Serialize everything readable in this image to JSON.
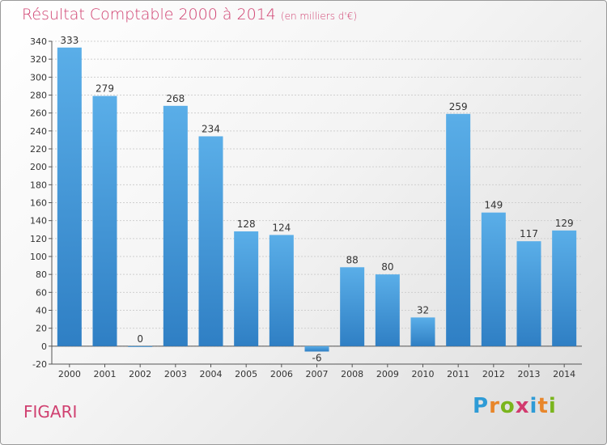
{
  "chart_data": {
    "type": "bar",
    "title": "Résultat Comptable 2000 à 2014",
    "subtitle": "(en milliers d'€)",
    "categories": [
      "2000",
      "2001",
      "2002",
      "2003",
      "2004",
      "2005",
      "2006",
      "2007",
      "2008",
      "2009",
      "2010",
      "2011",
      "2012",
      "2013",
      "2014"
    ],
    "values": [
      333,
      279,
      0,
      268,
      234,
      128,
      124,
      -6,
      88,
      80,
      32,
      259,
      149,
      117,
      129
    ],
    "ylim": [
      -20,
      340
    ],
    "yticks": [
      -20,
      0,
      20,
      40,
      60,
      80,
      100,
      120,
      140,
      160,
      180,
      200,
      220,
      240,
      260,
      280,
      300,
      320,
      340
    ],
    "grid": true,
    "bar_color": "#3f8fd6"
  },
  "footer": {
    "commune": "FIGARI",
    "logo_letters": [
      "P",
      "r",
      "o",
      "x",
      "i",
      "t",
      "i"
    ],
    "logo_colors": [
      "#2e9bd6",
      "#e8862a",
      "#7ab51d",
      "#d23a6e",
      "#2e9bd6",
      "#e8862a",
      "#7ab51d"
    ]
  }
}
